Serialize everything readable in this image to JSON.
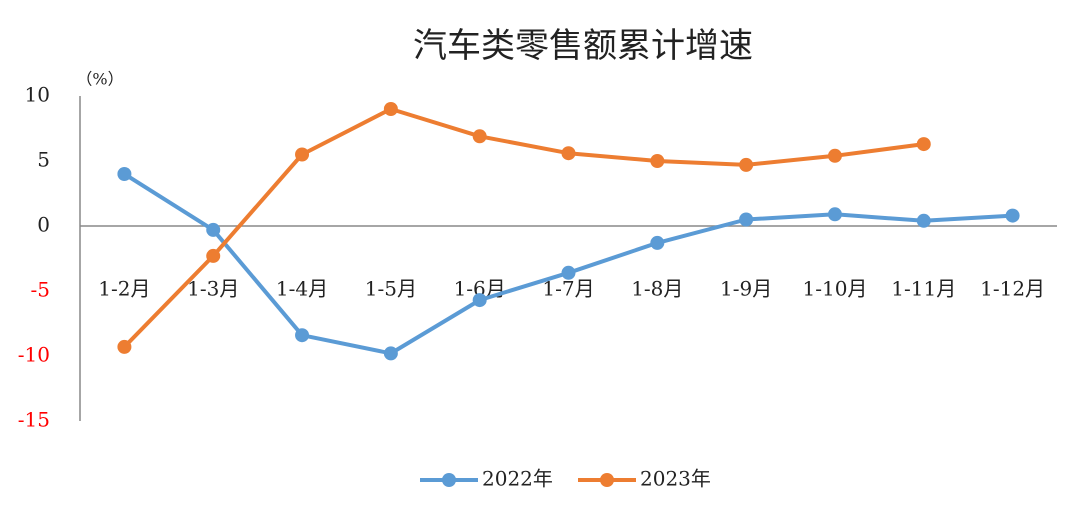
{
  "chart_data": {
    "type": "line",
    "title": "汽车类零售额累计增速",
    "y_unit": "（%）",
    "categories": [
      "1-2月",
      "1-3月",
      "1-4月",
      "1-5月",
      "1-6月",
      "1-7月",
      "1-8月",
      "1-9月",
      "1-10月",
      "1-11月",
      "1-12月"
    ],
    "series": [
      {
        "name": "2022年",
        "color": "#5b9bd5",
        "values": [
          4.0,
          -0.3,
          -8.4,
          -9.8,
          -5.7,
          -3.6,
          -1.3,
          0.5,
          0.9,
          0.4,
          0.8
        ]
      },
      {
        "name": "2023年",
        "color": "#ed7d31",
        "values": [
          -9.3,
          -2.3,
          5.5,
          9.0,
          6.9,
          5.6,
          5.0,
          4.7,
          5.4,
          6.3,
          null
        ]
      }
    ],
    "ylim": [
      -15,
      10
    ],
    "yticks": [
      -15,
      -10,
      -5,
      0,
      5,
      10
    ],
    "negative_tick_color": "#ff0000",
    "grid": false,
    "legend": "bottom"
  }
}
